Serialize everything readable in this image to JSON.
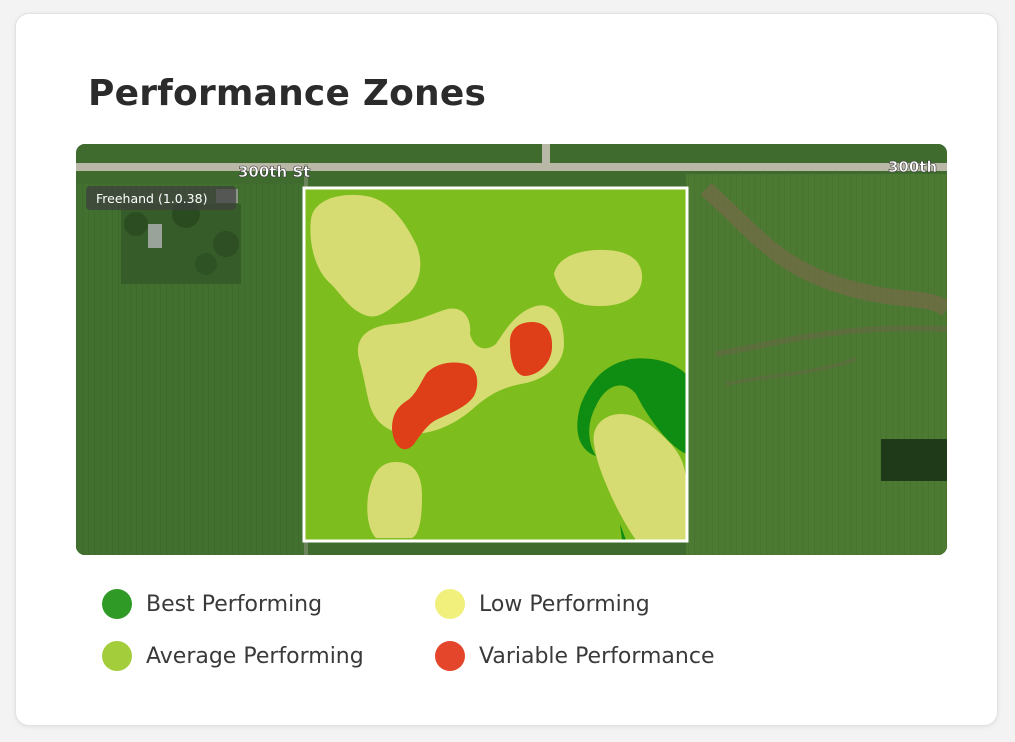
{
  "title": "Performance Zones",
  "map": {
    "tool_badge": "Freehand (1.0.38)",
    "road_labels": [
      "300th St",
      "300th"
    ],
    "imagery": "satellite-farmland"
  },
  "legend": [
    {
      "label": "Best Performing",
      "color": "#2f9a26",
      "icon": "best-performing-dot-icon"
    },
    {
      "label": "Low Performing",
      "color": "#f1f07c",
      "icon": "low-performing-dot-icon"
    },
    {
      "label": "Average Performing",
      "color": "#a3cd3b",
      "icon": "average-performing-dot-icon"
    },
    {
      "label": "Variable Performance",
      "color": "#e4462b",
      "icon": "variable-performance-dot-icon"
    }
  ],
  "zone_colors": {
    "average": "#7dbd1d",
    "low": "#d6dc72",
    "best": "#0f8c12",
    "variable": "#df3f18",
    "field_border": "#ffffff"
  }
}
